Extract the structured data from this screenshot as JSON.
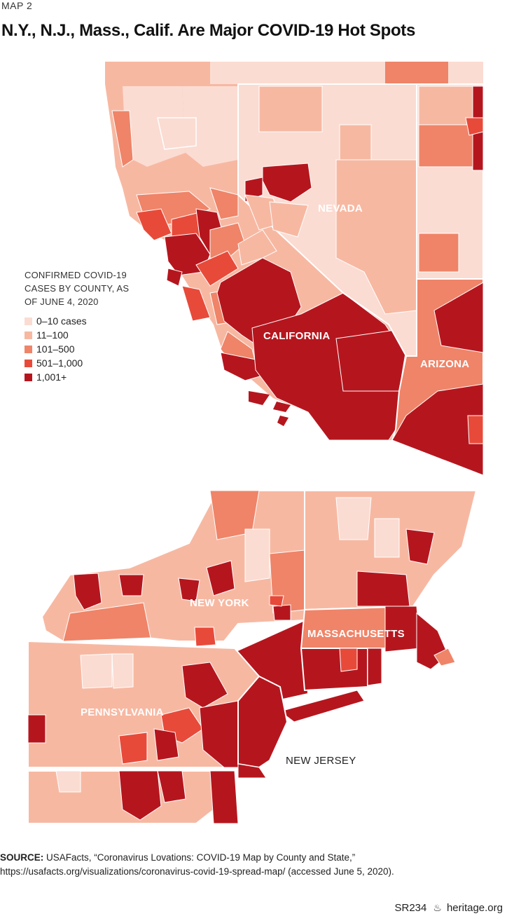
{
  "header": {
    "kicker": "MAP 2",
    "title": "N.Y., N.J., Mass., Calif. Are Major COVID-19 Hot Spots"
  },
  "legend": {
    "title": "CONFIRMED COVID-19 CASES BY COUNTY, AS OF JUNE 4, 2020",
    "items": [
      {
        "label": "0–10 cases",
        "color": "#fbdcd2"
      },
      {
        "label": "11–100",
        "color": "#f7b8a2"
      },
      {
        "label": "101–500",
        "color": "#ef8468"
      },
      {
        "label": "501–1,000",
        "color": "#e84a3a"
      },
      {
        "label": "1,001+",
        "color": "#b5161e"
      }
    ]
  },
  "state_labels": {
    "nevada": "NEVADA",
    "california": "CALIFORNIA",
    "arizona": "ARIZONA",
    "new_york": "NEW YORK",
    "massachusetts": "MASSACHUSETTS",
    "pennsylvania": "PENNSYLVANIA",
    "new_jersey": "NEW JERSEY"
  },
  "source": {
    "prefix": "SOURCE:",
    "line1": "USAFacts, “Coronavirus Lovations: COVID-19 Map by County and State,”",
    "line2": "https://usafacts.org/visualizations/coronavirus-covid-19-spread-map/ (accessed June 5, 2020)."
  },
  "footer": {
    "report_id": "SR234",
    "site": "heritage.org"
  }
}
